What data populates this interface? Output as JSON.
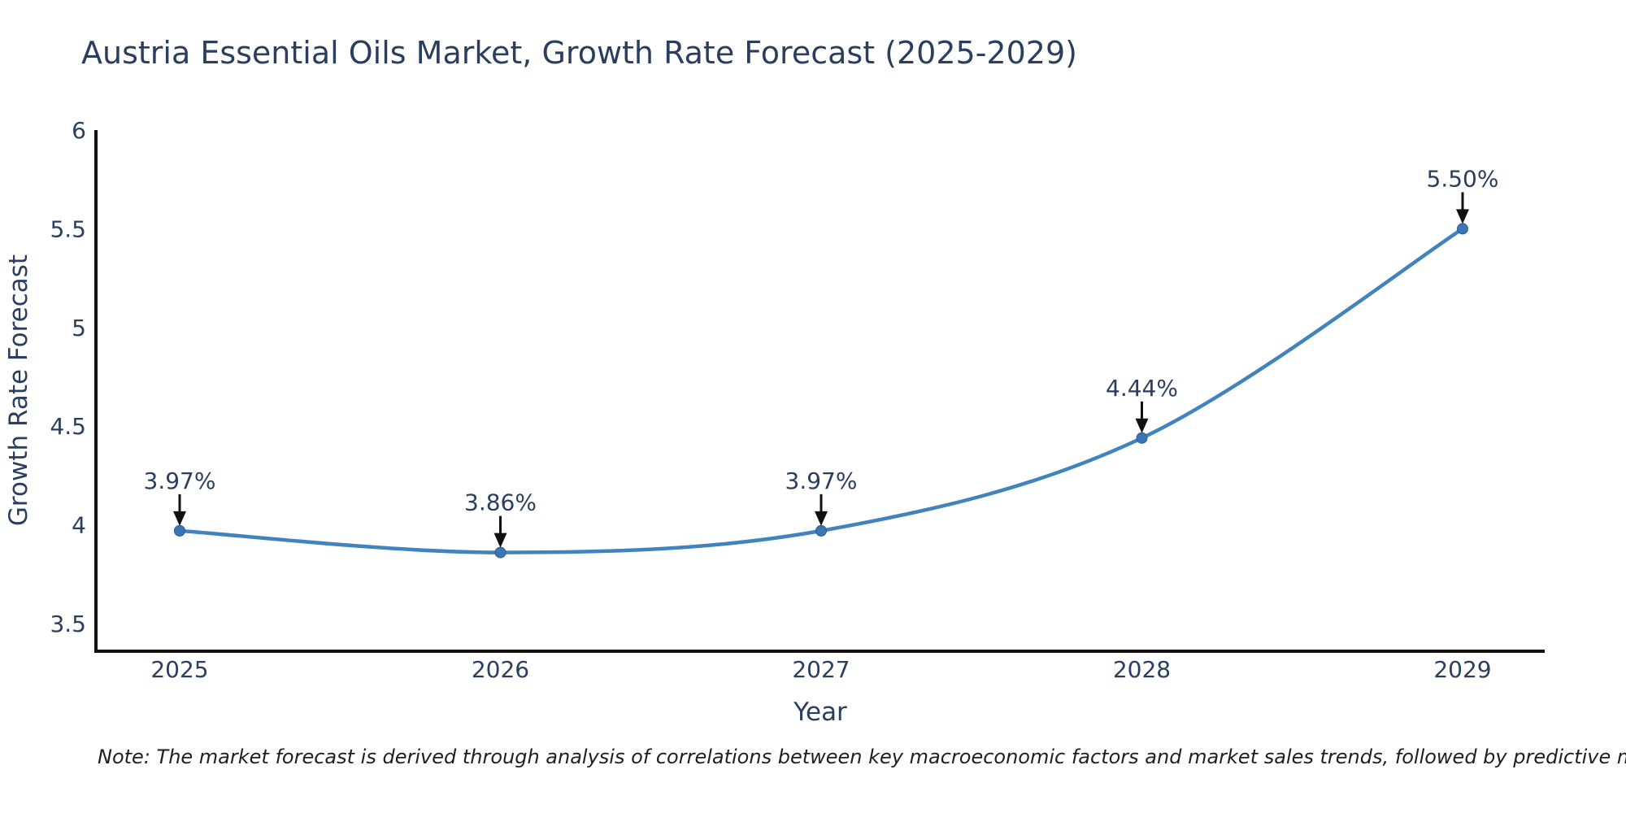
{
  "page": {
    "title": "Austria Essential Oils Market, Growth Rate Forecast (2025-2029)",
    "note": "Note: The market forecast is derived through analysis of correlations between key macroeconomic factors and market sales trends, followed by predictive modeling to project future sales"
  },
  "chart_data": {
    "type": "line",
    "title": "Austria Essential Oils Market, Growth Rate Forecast (2025-2029)",
    "xlabel": "Year",
    "ylabel": "Growth Rate Forecast",
    "categories": [
      "2025",
      "2026",
      "2027",
      "2028",
      "2029"
    ],
    "series": [
      {
        "name": "Growth Rate Forecast",
        "values": [
          3.97,
          3.86,
          3.97,
          4.44,
          5.5
        ]
      }
    ],
    "point_labels": [
      "3.97%",
      "3.86%",
      "3.97%",
      "4.44%",
      "5.50%"
    ],
    "yticks": [
      3.5,
      4,
      4.5,
      5,
      5.5,
      6
    ],
    "ylim": [
      3.5,
      6
    ],
    "line_shape": "spline",
    "grid": false,
    "legend_position": "none",
    "annotation_style": "down-arrow",
    "colors": {
      "line": "#4183bd",
      "marker_fill": "#3976b5",
      "marker_edge": "#2b5c8f",
      "arrow": "#111111",
      "text": "#2a3f5f",
      "axis": "#111111",
      "background": "#ffffff"
    }
  }
}
